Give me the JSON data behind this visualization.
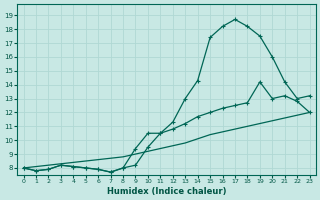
{
  "background_color": "#c8e8e4",
  "grid_color": "#b0d8d4",
  "line_color": "#006655",
  "xlabel": "Humidex (Indice chaleur)",
  "xmin": -0.5,
  "xmax": 23.5,
  "ymin": 7.5,
  "ymax": 19.8,
  "yticks": [
    8,
    9,
    10,
    11,
    12,
    13,
    14,
    15,
    16,
    17,
    18,
    19
  ],
  "xticks": [
    0,
    1,
    2,
    3,
    4,
    5,
    6,
    7,
    8,
    9,
    10,
    11,
    12,
    13,
    14,
    15,
    16,
    17,
    18,
    19,
    20,
    21,
    22,
    23
  ],
  "line1_x": [
    0,
    1,
    2,
    3,
    4,
    5,
    6,
    7,
    8,
    9,
    10,
    11,
    12,
    13,
    14,
    15,
    16,
    17,
    18,
    19,
    20,
    21,
    22,
    23
  ],
  "line1_y": [
    8.0,
    7.8,
    7.9,
    8.2,
    8.1,
    8.0,
    7.9,
    7.7,
    8.0,
    8.2,
    9.5,
    10.5,
    11.3,
    13.0,
    14.3,
    17.4,
    18.2,
    18.7,
    18.2,
    17.5,
    16.0,
    14.2,
    13.0,
    13.2
  ],
  "line2_x": [
    0,
    1,
    2,
    3,
    4,
    5,
    6,
    7,
    8,
    9,
    10,
    11,
    12,
    13,
    14,
    15,
    16,
    17,
    18,
    19,
    20,
    21,
    22,
    23
  ],
  "line2_y": [
    8.0,
    8.1,
    8.2,
    8.3,
    8.4,
    8.5,
    8.6,
    8.7,
    8.8,
    9.0,
    9.2,
    9.4,
    9.6,
    9.8,
    10.1,
    10.4,
    10.6,
    10.8,
    11.0,
    11.2,
    11.4,
    11.6,
    11.8,
    12.0
  ],
  "line3_x": [
    0,
    1,
    2,
    3,
    4,
    5,
    6,
    7,
    8,
    9,
    10,
    11,
    12,
    13,
    14,
    15,
    16,
    17,
    18,
    19,
    20,
    21,
    22,
    23
  ],
  "line3_y": [
    8.0,
    7.8,
    7.9,
    8.2,
    8.1,
    8.0,
    7.9,
    7.7,
    8.0,
    9.4,
    10.5,
    10.5,
    10.8,
    11.2,
    11.7,
    12.0,
    12.3,
    12.5,
    12.7,
    14.2,
    13.0,
    13.2,
    12.8,
    12.0
  ],
  "marker_style": "+",
  "markersize": 3.5,
  "linewidth": 0.9
}
